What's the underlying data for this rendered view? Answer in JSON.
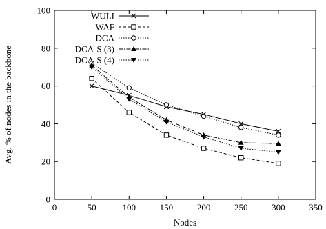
{
  "chart_data": {
    "type": "line",
    "title": "",
    "xlabel": "Nodes",
    "ylabel": "Avg. % of nodes in the backbone",
    "xlim": [
      0,
      350
    ],
    "ylim": [
      0,
      100
    ],
    "xticks": [
      0,
      50,
      100,
      150,
      200,
      250,
      300,
      350
    ],
    "yticks": [
      0,
      20,
      40,
      60,
      80,
      100
    ],
    "grid": false,
    "legend_position": "top-right",
    "x": [
      50,
      100,
      150,
      200,
      250,
      300
    ],
    "series": [
      {
        "name": "WULI",
        "marker": "x",
        "dash": "",
        "values": [
          60,
          55,
          49,
          45,
          40,
          36
        ]
      },
      {
        "name": "WAF",
        "marker": "square",
        "dash": "4,3",
        "values": [
          64,
          46,
          34,
          27,
          22,
          19
        ]
      },
      {
        "name": "DCA",
        "marker": "circle",
        "dash": "1.5,2",
        "values": [
          72,
          59,
          50,
          44,
          38,
          34
        ]
      },
      {
        "name": "DCA-S (3)",
        "marker": "triangle-up",
        "dash": "6,2,1.5,2",
        "values": [
          71,
          54,
          42,
          34,
          30,
          29.5
        ]
      },
      {
        "name": "DCA-S (4)",
        "marker": "triangle-down",
        "dash": "1.5,2",
        "values": [
          70,
          53,
          41,
          33,
          27,
          25
        ]
      }
    ]
  }
}
